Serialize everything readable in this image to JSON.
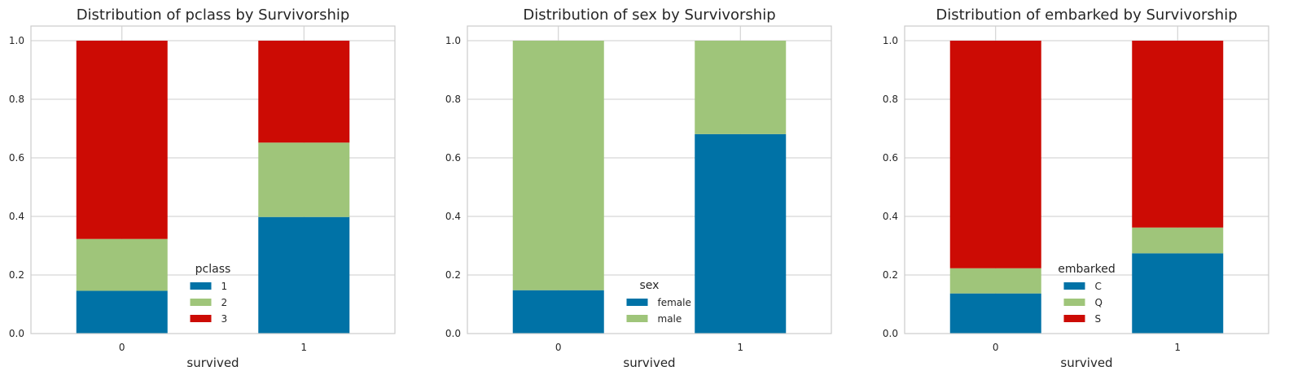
{
  "chart_data": [
    {
      "type": "bar",
      "stacked": true,
      "title": "Distribution of pclass by Survivorship",
      "xlabel": "survived",
      "ylabel": "",
      "categories": [
        "0",
        "1"
      ],
      "ylim": [
        0,
        1.05
      ],
      "yticks": [
        "0.0",
        "0.2",
        "0.4",
        "0.6",
        "0.8",
        "1.0"
      ],
      "grid": true,
      "legend": {
        "title": "pclass",
        "placement": "lower center"
      },
      "series": [
        {
          "name": "1",
          "color": "#0072a6",
          "values": [
            0.146,
            0.398
          ]
        },
        {
          "name": "2",
          "color": "#9fc57a",
          "values": [
            0.177,
            0.254
          ]
        },
        {
          "name": "3",
          "color": "#cc0b04",
          "values": [
            0.677,
            0.348
          ]
        }
      ]
    },
    {
      "type": "bar",
      "stacked": true,
      "title": "Distribution of sex by Survivorship",
      "xlabel": "survived",
      "ylabel": "",
      "categories": [
        "0",
        "1"
      ],
      "ylim": [
        0,
        1.05
      ],
      "yticks": [
        "0.0",
        "0.2",
        "0.4",
        "0.6",
        "0.8",
        "1.0"
      ],
      "grid": true,
      "legend": {
        "title": "sex",
        "placement": "lower center"
      },
      "series": [
        {
          "name": "female",
          "color": "#0072a6",
          "values": [
            0.148,
            0.681
          ]
        },
        {
          "name": "male",
          "color": "#9fc57a",
          "values": [
            0.852,
            0.319
          ]
        }
      ]
    },
    {
      "type": "bar",
      "stacked": true,
      "title": "Distribution of embarked by Survivorship",
      "xlabel": "survived",
      "ylabel": "",
      "categories": [
        "0",
        "1"
      ],
      "ylim": [
        0,
        1.05
      ],
      "yticks": [
        "0.0",
        "0.2",
        "0.4",
        "0.6",
        "0.8",
        "1.0"
      ],
      "grid": true,
      "legend": {
        "title": "embarked",
        "placement": "lower center"
      },
      "series": [
        {
          "name": "C",
          "color": "#0072a6",
          "values": [
            0.137,
            0.274
          ]
        },
        {
          "name": "Q",
          "color": "#9fc57a",
          "values": [
            0.086,
            0.088
          ]
        },
        {
          "name": "S",
          "color": "#cc0b04",
          "values": [
            0.777,
            0.638
          ]
        }
      ]
    }
  ]
}
